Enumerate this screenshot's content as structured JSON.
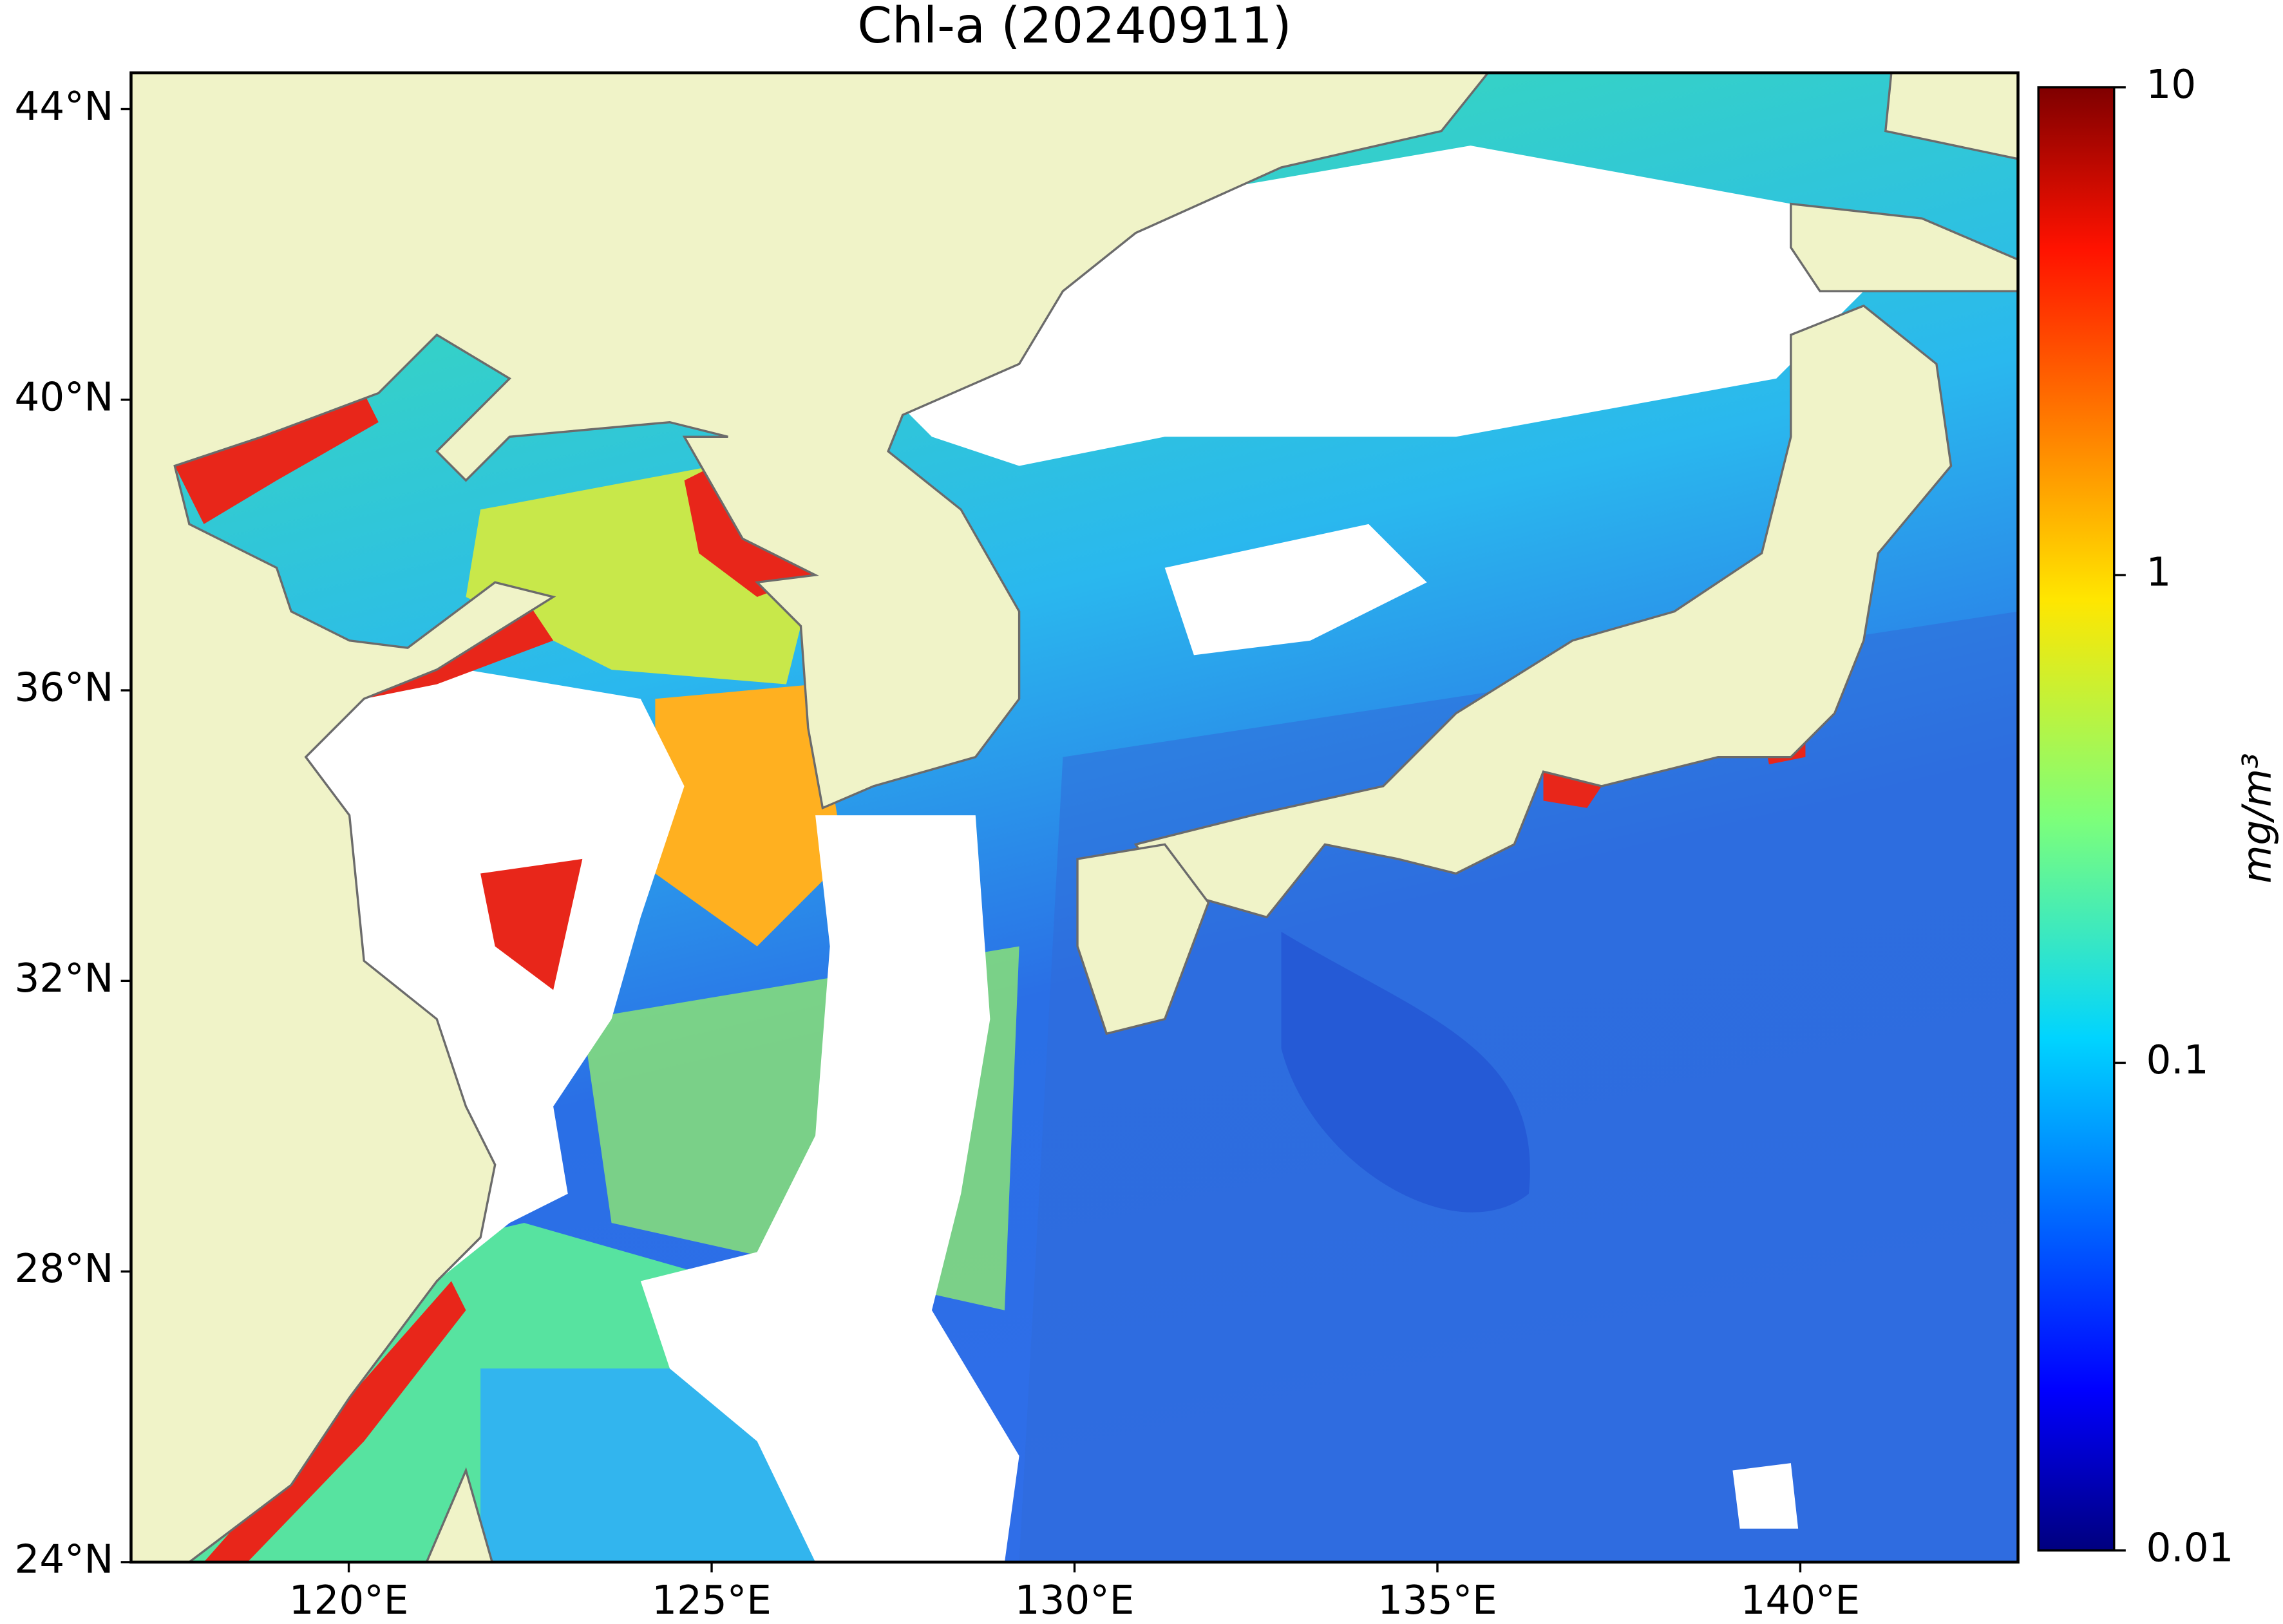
{
  "chart_data": {
    "type": "map",
    "title": "Chl-a (20240911)",
    "xlim": [
      117,
      143
    ],
    "ylim": [
      24,
      44.5
    ],
    "xticks": [
      {
        "value": 120,
        "label": "120°E"
      },
      {
        "value": 125,
        "label": "125°E"
      },
      {
        "value": 130,
        "label": "130°E"
      },
      {
        "value": 135,
        "label": "135°E"
      },
      {
        "value": 140,
        "label": "140°E"
      }
    ],
    "yticks": [
      {
        "value": 24,
        "label": "24°N"
      },
      {
        "value": 28,
        "label": "28°N"
      },
      {
        "value": 32,
        "label": "32°N"
      },
      {
        "value": 36,
        "label": "36°N"
      },
      {
        "value": 40,
        "label": "40°N"
      },
      {
        "value": 44,
        "label": "44°N"
      }
    ],
    "colorbar": {
      "label": "mg/m³",
      "scale": "log",
      "colormap": "jet",
      "lim": [
        0.01,
        10
      ],
      "ticks": [
        0.01,
        0.1,
        1,
        10
      ]
    }
  }
}
